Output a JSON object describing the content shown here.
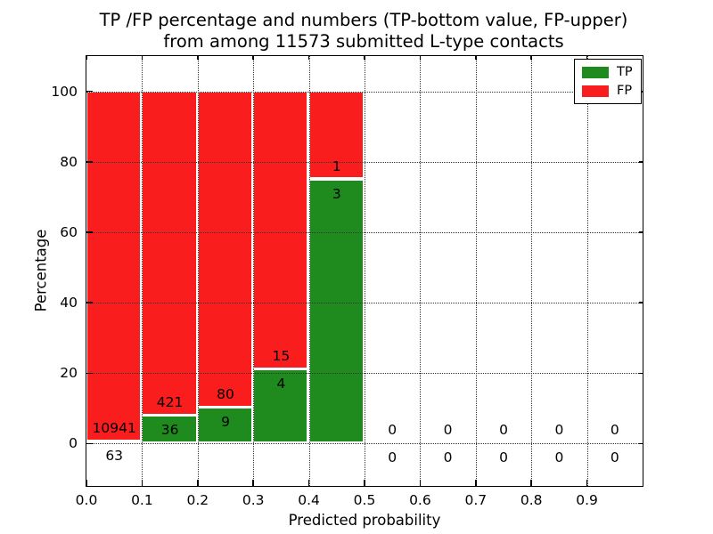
{
  "title": {
    "line1": "TP /FP percentage and numbers (TP-bottom value, FP-upper)",
    "line2": "from among 11573 submitted L-type contacts"
  },
  "axes": {
    "xlabel": "Predicted probability",
    "ylabel": "Percentage",
    "x_tick_labels": [
      "0.0",
      "0.1",
      "0.2",
      "0.3",
      "0.4",
      "0.5",
      "0.6",
      "0.7",
      "0.8",
      "0.9"
    ],
    "y_tick_labels": [
      "0",
      "20",
      "40",
      "60",
      "80",
      "100"
    ]
  },
  "legend": {
    "items": [
      {
        "label": "TP",
        "color": "#1f8b1f"
      },
      {
        "label": "FP",
        "color": "#fa1d1d"
      }
    ]
  },
  "colors": {
    "tp": "#1f8b1f",
    "fp": "#fa1d1d",
    "grid": "#333333",
    "background": "#ffffff",
    "text": "#000000"
  },
  "chart_data": {
    "type": "bar",
    "stacked": true,
    "title": "TP /FP percentage and numbers (TP-bottom value, FP-upper) from among 11573 submitted L-type contacts",
    "xlabel": "Predicted probability",
    "ylabel": "Percentage",
    "xlim": [
      0.0,
      1.0
    ],
    "ylim": [
      -12,
      110
    ],
    "x_ticks": [
      0.0,
      0.1,
      0.2,
      0.3,
      0.4,
      0.5,
      0.6,
      0.7,
      0.8,
      0.9
    ],
    "y_ticks": [
      0,
      20,
      40,
      60,
      80,
      100
    ],
    "grid": true,
    "grid_style": "dotted",
    "legend_position": "upper-right",
    "total_contacts": 11573,
    "bin_width": 0.1,
    "categories": [
      "0.0-0.1",
      "0.1-0.2",
      "0.2-0.3",
      "0.3-0.4",
      "0.4-0.5",
      "0.5-0.6",
      "0.6-0.7",
      "0.7-0.8",
      "0.8-0.9",
      "0.9-1.0"
    ],
    "series": [
      {
        "name": "TP",
        "color": "#1f8b1f",
        "counts": [
          63,
          36,
          9,
          4,
          3,
          0,
          0,
          0,
          0,
          0
        ],
        "percentages": [
          0.57,
          7.88,
          10.11,
          21.05,
          75.0,
          0,
          0,
          0,
          0,
          0
        ]
      },
      {
        "name": "FP",
        "color": "#fa1d1d",
        "counts": [
          10941,
          421,
          80,
          15,
          1,
          0,
          0,
          0,
          0,
          0
        ],
        "percentages": [
          99.43,
          92.12,
          89.89,
          78.95,
          25.0,
          0,
          0,
          0,
          0,
          0
        ]
      }
    ]
  }
}
